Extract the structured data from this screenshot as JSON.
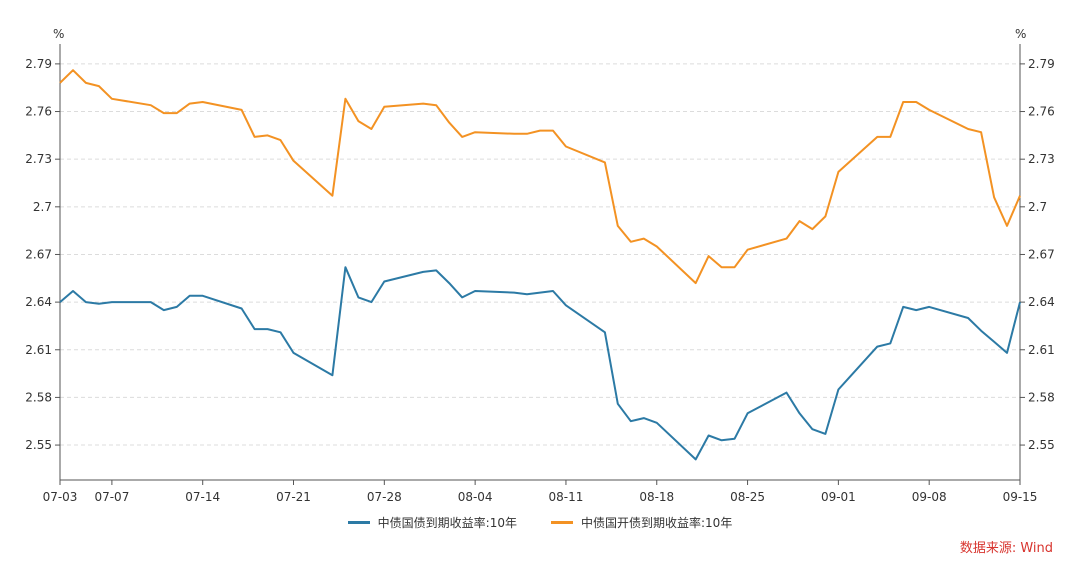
{
  "chart_data": {
    "type": "line",
    "x_dates": [
      "07-03",
      "07-04",
      "07-05",
      "07-06",
      "07-07",
      "07-10",
      "07-11",
      "07-12",
      "07-13",
      "07-14",
      "07-17",
      "07-18",
      "07-19",
      "07-20",
      "07-21",
      "07-24",
      "07-25",
      "07-26",
      "07-27",
      "07-28",
      "07-31",
      "08-01",
      "08-02",
      "08-03",
      "08-04",
      "08-07",
      "08-08",
      "08-09",
      "08-10",
      "08-11",
      "08-14",
      "08-15",
      "08-16",
      "08-17",
      "08-18",
      "08-21",
      "08-22",
      "08-23",
      "08-24",
      "08-25",
      "08-28",
      "08-29",
      "08-30",
      "08-31",
      "09-01",
      "09-04",
      "09-05",
      "09-06",
      "09-07",
      "09-08",
      "09-11",
      "09-12",
      "09-13",
      "09-14",
      "09-15"
    ],
    "x_tick_labels": [
      "07-03",
      "07-07",
      "07-14",
      "07-21",
      "07-28",
      "08-04",
      "08-11",
      "08-18",
      "08-25",
      "09-01",
      "09-08",
      "09-15"
    ],
    "y_ticks": [
      "2.55",
      "2.58",
      "2.61",
      "2.64",
      "2.67",
      "2.7",
      "2.73",
      "2.76",
      "2.79"
    ],
    "ylim": [
      2.528,
      2.8
    ],
    "left_unit": "%",
    "right_unit": "%",
    "grid": "horizontal-dashed",
    "legend_position": "bottom-center",
    "series": [
      {
        "name": "中债国债到期收益率:10年",
        "color": "#2c7aa5",
        "values": [
          2.64,
          2.647,
          2.64,
          2.639,
          2.64,
          2.64,
          2.635,
          2.637,
          2.644,
          2.644,
          2.636,
          2.623,
          2.623,
          2.621,
          2.608,
          2.594,
          2.662,
          2.643,
          2.64,
          2.653,
          2.659,
          2.66,
          2.652,
          2.643,
          2.647,
          2.646,
          2.645,
          2.646,
          2.647,
          2.638,
          2.621,
          2.576,
          2.565,
          2.567,
          2.564,
          2.541,
          2.556,
          2.553,
          2.554,
          2.57,
          2.583,
          2.57,
          2.56,
          2.557,
          2.585,
          2.612,
          2.614,
          2.637,
          2.635,
          2.637,
          2.63,
          2.622,
          2.615,
          2.608,
          2.64
        ]
      },
      {
        "name": "中债国开债到期收益率:10年",
        "color": "#f39223",
        "values": [
          2.778,
          2.786,
          2.778,
          2.776,
          2.768,
          2.764,
          2.759,
          2.759,
          2.765,
          2.766,
          2.761,
          2.744,
          2.745,
          2.742,
          2.729,
          2.707,
          2.768,
          2.754,
          2.749,
          2.763,
          2.765,
          2.764,
          2.753,
          2.744,
          2.747,
          2.746,
          2.746,
          2.748,
          2.748,
          2.738,
          2.728,
          2.688,
          2.678,
          2.68,
          2.675,
          2.652,
          2.669,
          2.662,
          2.662,
          2.673,
          2.68,
          2.691,
          2.686,
          2.694,
          2.722,
          2.744,
          2.744,
          2.766,
          2.766,
          2.761,
          2.749,
          2.747,
          2.706,
          2.688,
          2.707
        ]
      }
    ]
  },
  "legend": {
    "items": [
      {
        "label": "中债国债到期收益率:10年",
        "color": "#2c7aa5"
      },
      {
        "label": "中债国开债到期收益率:10年",
        "color": "#f39223"
      }
    ]
  },
  "source_text": "数据来源: Wind"
}
